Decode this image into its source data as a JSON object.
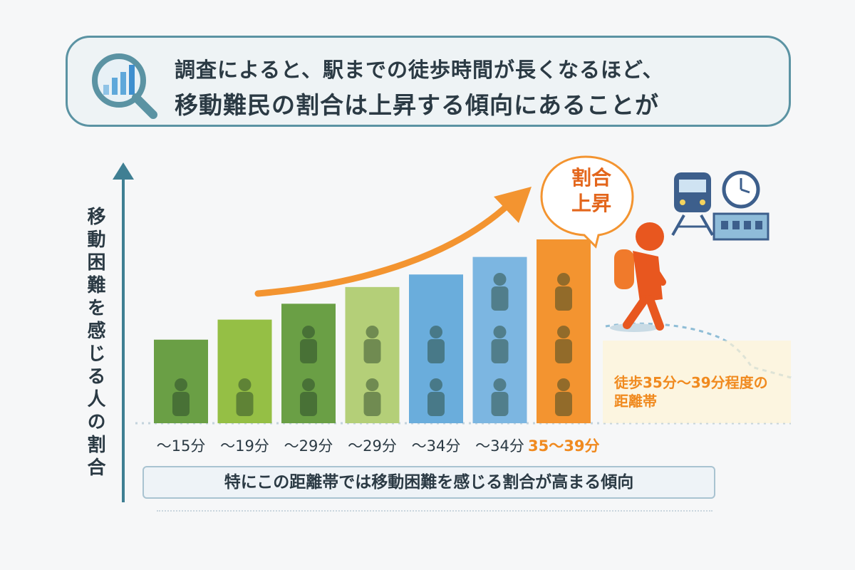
{
  "banner": {
    "line1": "調査によると、駅までの徒歩時間が長くなるほど、",
    "line2": "移動難民の割合は上昇する傾向にあることが"
  },
  "bubble": {
    "line1": "割合",
    "line2": "上昇"
  },
  "annotation": {
    "line1": "徒歩35分〜39分程度の",
    "line2": "距離帯"
  },
  "footnote": "特にこの距離帯では移動困難を感じる割合が高まる傾向",
  "chart_data": {
    "type": "bar",
    "ylabel": "移動困難を感じる人の割合",
    "categories": [
      "〜15分",
      "〜19分",
      "〜29分",
      "〜29分",
      "〜34分",
      "〜34分",
      "35〜39分"
    ],
    "values": [
      1.0,
      1.24,
      1.43,
      1.63,
      1.78,
      1.99,
      2.2
    ],
    "highlight_index": 6,
    "colors": [
      "#6a9f45",
      "#95bf45",
      "#6a9f45",
      "#b4cf78",
      "#6aaddc",
      "#7cb6e1",
      "#f39430"
    ],
    "grid": false,
    "legend": "none",
    "trend_arrow": true,
    "accent": "#f39430"
  }
}
